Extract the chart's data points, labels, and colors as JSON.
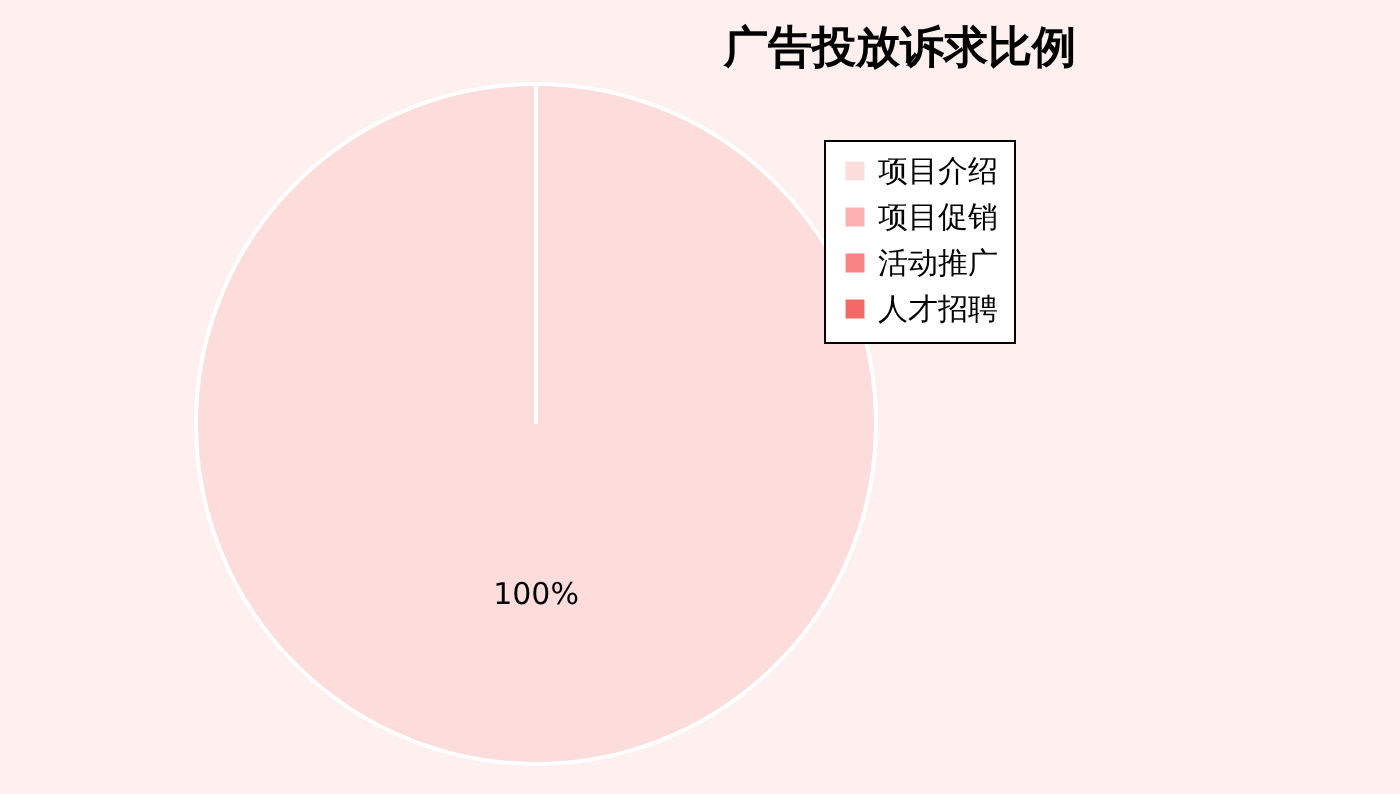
{
  "chart_data": {
    "type": "pie",
    "title": "广告投放诉求比例",
    "categories": [
      "项目介绍",
      "项目促销",
      "活动推广",
      "人才招聘"
    ],
    "values": [
      100,
      0,
      0,
      0
    ],
    "colors": [
      "#fddcdc",
      "#fcb0b0",
      "#f88484",
      "#f46868"
    ],
    "value_labels": [
      "100%",
      null,
      null,
      null
    ],
    "legend": "top right"
  }
}
